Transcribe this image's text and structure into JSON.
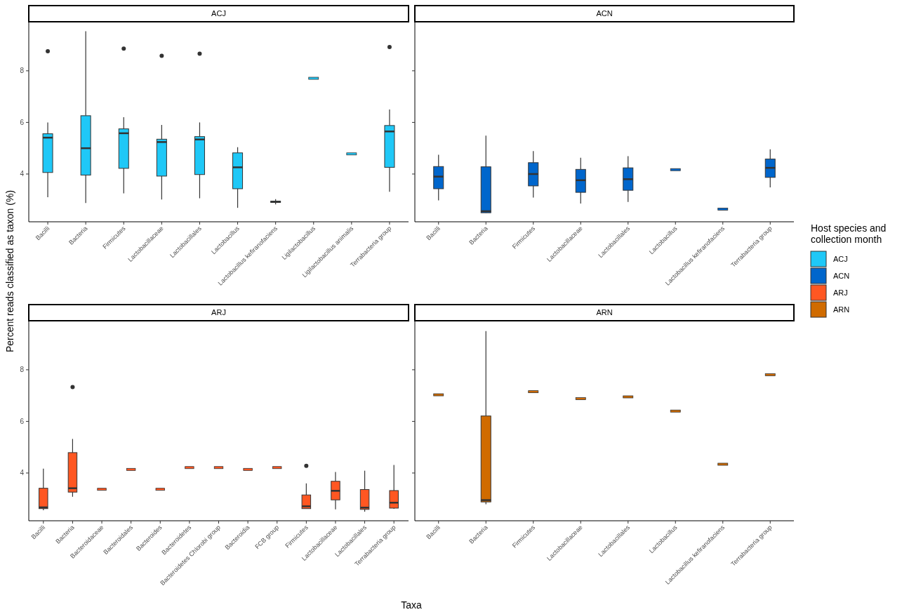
{
  "chart_data": [
    {
      "type": "box",
      "title": "ACJ",
      "ylabel": "Percent reads classified as taxon (%)",
      "legend": "right",
      "legend_title": "Host species and collection month",
      "ylim": [
        2.15,
        9.9
      ],
      "yticks": [
        4,
        6,
        8
      ],
      "grid": false,
      "categories": [
        "Bacilli",
        "Bacteria",
        "Firmicutes",
        "Lactobacillaceae",
        "Lactobacillales",
        "Lactobacillus",
        "Lactobacillus kefiranofaciens",
        "Ligilactobacillus",
        "Ligilactobacillus animalis",
        "Terrabacteria group"
      ],
      "series": [
        {
          "name": "ACJ",
          "color": "#1fc8f7",
          "boxes": [
            {
              "low": 3.1,
              "q1": 4.06,
              "median": 5.41,
              "q3": 5.56,
              "high": 6.0,
              "outliers": [
                8.76
              ]
            },
            {
              "low": 2.88,
              "q1": 3.96,
              "median": 5.0,
              "q3": 6.26,
              "high": 9.53
            },
            {
              "low": 3.25,
              "q1": 4.22,
              "median": 5.58,
              "q3": 5.75,
              "high": 6.2,
              "outliers": [
                8.86
              ]
            },
            {
              "low": 3.01,
              "q1": 3.92,
              "median": 5.24,
              "q3": 5.35,
              "high": 5.9,
              "outliers": [
                8.58
              ]
            },
            {
              "low": 3.06,
              "q1": 3.98,
              "median": 5.34,
              "q3": 5.45,
              "high": 6.0,
              "outliers": [
                8.66
              ]
            },
            {
              "low": 2.69,
              "q1": 3.43,
              "median": 4.26,
              "q3": 4.82,
              "high": 5.04
            },
            {
              "low": 2.82,
              "q1": 2.9,
              "median": 2.92,
              "q3": 2.95,
              "high": 3.03
            },
            {
              "low": 7.71,
              "q1": 7.71,
              "median": 7.71,
              "q3": 7.71,
              "high": 7.71
            },
            {
              "low": 4.78,
              "q1": 4.78,
              "median": 4.78,
              "q3": 4.78,
              "high": 4.78
            },
            {
              "low": 3.31,
              "q1": 4.26,
              "median": 5.65,
              "q3": 5.88,
              "high": 6.5,
              "outliers": [
                8.92
              ]
            }
          ]
        }
      ]
    },
    {
      "type": "box",
      "title": "ACN",
      "legend": "right",
      "ylim": [
        2.15,
        9.9
      ],
      "yticks": [
        4,
        6,
        8
      ],
      "tick_labels": "x",
      "grid": false,
      "categories": [
        "Bacilli",
        "Bacteria",
        "Firmicutes",
        "Lactobacillaceae",
        "Lactobacillales",
        "Lactobacillus",
        "Lactobacillus kefiranofaciens",
        "Terrabacteria group"
      ],
      "series": [
        {
          "name": "ACN",
          "color": "#0066cc",
          "boxes": [
            {
              "low": 2.98,
              "q1": 3.43,
              "median": 3.9,
              "q3": 4.29,
              "high": 4.75
            },
            {
              "low": 2.49,
              "q1": 2.5,
              "median": 2.56,
              "q3": 4.28,
              "high": 5.49
            },
            {
              "low": 3.09,
              "q1": 3.54,
              "median": 4.0,
              "q3": 4.44,
              "high": 4.89
            },
            {
              "low": 2.86,
              "q1": 3.29,
              "median": 3.76,
              "q3": 4.18,
              "high": 4.63
            },
            {
              "low": 2.92,
              "q1": 3.37,
              "median": 3.8,
              "q3": 4.24,
              "high": 4.69
            },
            {
              "low": 4.17,
              "q1": 4.17,
              "median": 4.17,
              "q3": 4.17,
              "high": 4.17
            },
            {
              "low": 2.64,
              "q1": 2.64,
              "median": 2.64,
              "q3": 2.64,
              "high": 2.64
            },
            {
              "low": 3.48,
              "q1": 3.87,
              "median": 4.24,
              "q3": 4.58,
              "high": 4.96
            }
          ]
        }
      ]
    },
    {
      "type": "box",
      "title": "ARJ",
      "xlabel": "Taxa",
      "legend": "right",
      "ylim": [
        2.15,
        9.9
      ],
      "yticks": [
        4,
        6,
        8
      ],
      "grid": false,
      "categories": [
        "Bacilli",
        "Bacteria",
        "Bacteroidaceae",
        "Bacteroidales",
        "Bacteroides",
        "Bacteroidetes",
        "Bacteroidetes Chlorobi group",
        "Bacteroidia",
        "FCB group",
        "Firmicutes",
        "Lactobacillaceae",
        "Lactobacillales",
        "Terrabacteria group"
      ],
      "series": [
        {
          "name": "ARJ",
          "color": "#ff5722",
          "boxes": [
            {
              "low": 2.56,
              "q1": 2.62,
              "median": 2.67,
              "q3": 3.41,
              "high": 4.17
            },
            {
              "low": 3.08,
              "q1": 3.26,
              "median": 3.41,
              "q3": 4.79,
              "high": 5.32,
              "outliers": [
                7.33
              ]
            },
            {
              "low": 3.37,
              "q1": 3.37,
              "median": 3.37,
              "q3": 3.37,
              "high": 3.37
            },
            {
              "low": 4.14,
              "q1": 4.14,
              "median": 4.14,
              "q3": 4.14,
              "high": 4.14
            },
            {
              "low": 3.37,
              "q1": 3.37,
              "median": 3.37,
              "q3": 3.37,
              "high": 3.37
            },
            {
              "low": 4.21,
              "q1": 4.21,
              "median": 4.21,
              "q3": 4.21,
              "high": 4.21
            },
            {
              "low": 4.21,
              "q1": 4.21,
              "median": 4.21,
              "q3": 4.21,
              "high": 4.21
            },
            {
              "low": 4.14,
              "q1": 4.14,
              "median": 4.14,
              "q3": 4.14,
              "high": 4.14
            },
            {
              "low": 4.21,
              "q1": 4.21,
              "median": 4.21,
              "q3": 4.21,
              "high": 4.21
            },
            {
              "low": 2.62,
              "q1": 2.62,
              "median": 2.71,
              "q3": 3.15,
              "high": 3.6,
              "outliers": [
                4.28
              ]
            },
            {
              "low": 2.59,
              "q1": 2.96,
              "median": 3.31,
              "q3": 3.68,
              "high": 4.04
            },
            {
              "low": 2.5,
              "q1": 2.59,
              "median": 2.66,
              "q3": 3.36,
              "high": 4.09
            },
            {
              "low": 2.61,
              "q1": 2.64,
              "median": 2.85,
              "q3": 3.32,
              "high": 4.31
            }
          ]
        }
      ]
    },
    {
      "type": "box",
      "title": "ARN",
      "legend": "right",
      "ylim": [
        2.15,
        9.9
      ],
      "yticks": [
        4,
        6,
        8
      ],
      "tick_labels": "x",
      "grid": false,
      "categories": [
        "Bacilli",
        "Bacteria",
        "Firmicutes",
        "Lactobacillaceae",
        "Lactobacillales",
        "Lactobacillus",
        "Lactobacillus kefiranofaciens",
        "Terrabacteria group"
      ],
      "series": [
        {
          "name": "ARN",
          "color": "#d06b00",
          "boxes": [
            {
              "low": 7.03,
              "q1": 7.03,
              "median": 7.03,
              "q3": 7.03,
              "high": 7.03
            },
            {
              "low": 2.79,
              "q1": 2.88,
              "median": 2.95,
              "q3": 6.21,
              "high": 9.5
            },
            {
              "low": 7.15,
              "q1": 7.15,
              "median": 7.15,
              "q3": 7.15,
              "high": 7.15
            },
            {
              "low": 6.88,
              "q1": 6.88,
              "median": 6.88,
              "q3": 6.88,
              "high": 6.88
            },
            {
              "low": 6.95,
              "q1": 6.95,
              "median": 6.95,
              "q3": 6.95,
              "high": 6.95
            },
            {
              "low": 6.4,
              "q1": 6.4,
              "median": 6.4,
              "q3": 6.4,
              "high": 6.4
            },
            {
              "low": 4.34,
              "q1": 4.34,
              "median": 4.34,
              "q3": 4.34,
              "high": 4.34
            },
            {
              "low": 7.81,
              "q1": 7.81,
              "median": 7.81,
              "q3": 7.81,
              "high": 7.81
            }
          ]
        }
      ]
    }
  ]
}
